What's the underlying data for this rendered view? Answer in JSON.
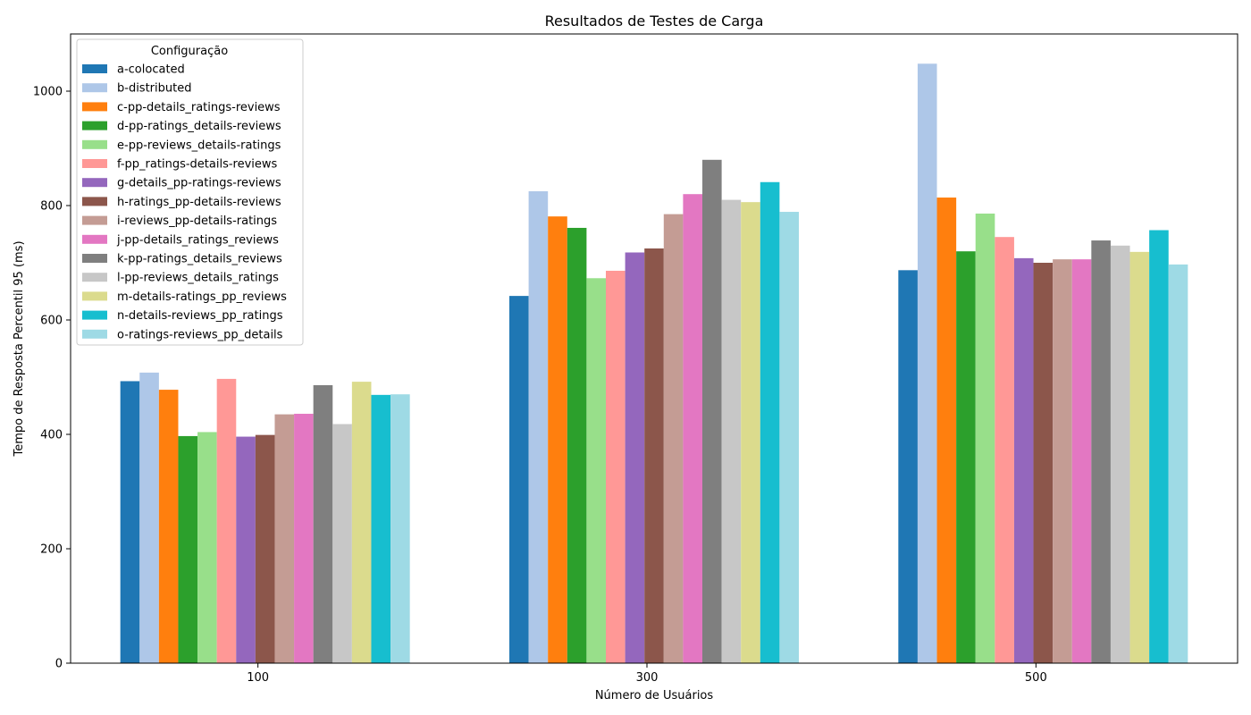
{
  "chart_data": {
    "type": "bar",
    "title": "Resultados de Testes de Carga",
    "xlabel": "Número de Usuários",
    "ylabel": "Tempo de Resposta Percentil 95 (ms)",
    "categories": [
      "100",
      "300",
      "500"
    ],
    "ylim": [
      0,
      1100
    ],
    "yticks": [
      0,
      200,
      400,
      600,
      800,
      1000
    ],
    "grid": false,
    "legend": {
      "title": "Configuração",
      "placement": "top-left"
    },
    "series": [
      {
        "name": "a-colocated",
        "color": "#1f77b4",
        "values": [
          493,
          642,
          687
        ]
      },
      {
        "name": "b-distributed",
        "color": "#aec7e8",
        "values": [
          508,
          825,
          1048
        ]
      },
      {
        "name": "c-pp-details_ratings-reviews",
        "color": "#ff7f0e",
        "values": [
          478,
          781,
          814
        ]
      },
      {
        "name": "d-pp-ratings_details-reviews",
        "color": "#2ca02c",
        "values": [
          397,
          761,
          720
        ]
      },
      {
        "name": "e-pp-reviews_details-ratings",
        "color": "#98df8a",
        "values": [
          404,
          673,
          786
        ]
      },
      {
        "name": "f-pp_ratings-details-reviews",
        "color": "#ff9896",
        "values": [
          497,
          686,
          745
        ]
      },
      {
        "name": "g-details_pp-ratings-reviews",
        "color": "#9467bd",
        "values": [
          396,
          718,
          708
        ]
      },
      {
        "name": "h-ratings_pp-details-reviews",
        "color": "#8c564b",
        "values": [
          399,
          725,
          700
        ]
      },
      {
        "name": "i-reviews_pp-details-ratings",
        "color": "#c49c94",
        "values": [
          435,
          785,
          706
        ]
      },
      {
        "name": "j-pp-details_ratings_reviews",
        "color": "#e377c2",
        "values": [
          436,
          820,
          706
        ]
      },
      {
        "name": "k-pp-ratings_details_reviews",
        "color": "#7f7f7f",
        "values": [
          486,
          880,
          739
        ]
      },
      {
        "name": "l-pp-reviews_details_ratings",
        "color": "#c7c7c7",
        "values": [
          418,
          810,
          730
        ]
      },
      {
        "name": "m-details-ratings_pp_reviews",
        "color": "#dbdb8d",
        "values": [
          492,
          806,
          719
        ]
      },
      {
        "name": "n-details-reviews_pp_ratings",
        "color": "#17becf",
        "values": [
          469,
          841,
          757
        ]
      },
      {
        "name": "o-ratings-reviews_pp_details",
        "color": "#9edae5",
        "values": [
          470,
          789,
          697
        ]
      }
    ]
  }
}
